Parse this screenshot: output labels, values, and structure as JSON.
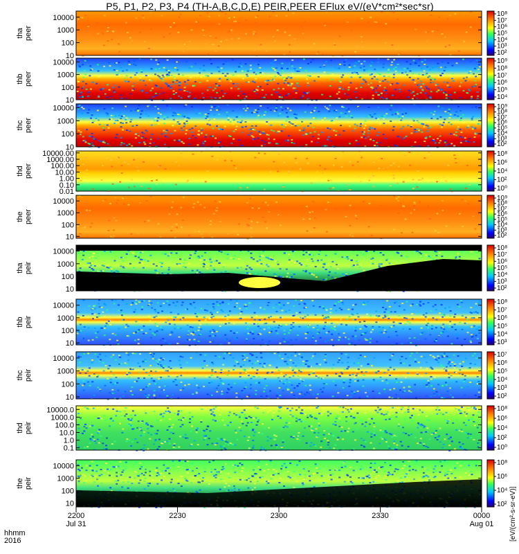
{
  "title": "P5, P1, P2, P3, P4 (TH-A,B,C,D,E) PEIR,PEER EFlux eV/(eV*cm²*sec*sr)",
  "colorbar_unit": "[eV/(cm²-s-sr-eV)]",
  "time_caption": {
    "line1": "hhmm",
    "line2": "2016"
  },
  "chart_data": {
    "type": "heatmap",
    "x_ticks": [
      {
        "label": "2200",
        "sub": "Jul 31"
      },
      {
        "label": "2230",
        "sub": ""
      },
      {
        "label": "2300",
        "sub": ""
      },
      {
        "label": "2330",
        "sub": ""
      },
      {
        "label": "0000",
        "sub": "Aug 01"
      }
    ],
    "panels": [
      {
        "id": "tha-peer",
        "probe": "tha",
        "product": "peer",
        "yticks": [
          "10000",
          "1000",
          "100",
          "10"
        ],
        "ylim": [
          10,
          30000
        ],
        "ylog": true,
        "colorbar_ticks": [
          "10⁸",
          "10⁷",
          "10⁶",
          "10⁵",
          "10⁴",
          "10³",
          "10²"
        ]
      },
      {
        "id": "thb-peer",
        "probe": "thb",
        "product": "peer",
        "yticks": [
          "10000",
          "1000",
          "100",
          "10"
        ],
        "ylim": [
          10,
          20000
        ],
        "ylog": true,
        "colorbar_ticks": [
          "10⁹",
          "10⁸",
          "10⁷",
          "10⁶",
          "10⁵",
          "10⁴"
        ]
      },
      {
        "id": "thc-peer",
        "probe": "thc",
        "product": "peer",
        "yticks": [
          "10000",
          "1000",
          "100",
          "10"
        ],
        "ylim": [
          10,
          20000
        ],
        "ylog": true,
        "colorbar_ticks": [
          "10⁹",
          "10⁸",
          "10⁷",
          "10⁶",
          "10⁵",
          "10⁴",
          "10³",
          "10²"
        ]
      },
      {
        "id": "thd-peer",
        "probe": "thd",
        "product": "peer",
        "yticks": [
          "10000.00",
          "1000.00",
          "100.00",
          "10.00",
          "1.00",
          "0.10",
          "0.01"
        ],
        "ylim": [
          0.01,
          20000
        ],
        "ylog": true,
        "colorbar_ticks": [
          "10⁸",
          "10⁶",
          "10⁴",
          "10²",
          "10⁰"
        ]
      },
      {
        "id": "the-peer",
        "probe": "the",
        "product": "peer",
        "yticks": [
          "10000",
          "1000",
          "100",
          "10"
        ],
        "ylim": [
          7,
          30000
        ],
        "ylog": true,
        "colorbar_ticks": [
          "10⁹",
          "10⁸",
          "10⁷",
          "10⁶",
          "10⁵",
          "10⁴",
          "10³",
          "10²"
        ]
      },
      {
        "id": "tha-peir",
        "probe": "tha",
        "product": "peir",
        "yticks": [
          "10000",
          "1000",
          "100",
          "10"
        ],
        "ylim": [
          7,
          30000
        ],
        "ylog": true,
        "colorbar_ticks": [
          "10⁸",
          "10⁷",
          "10⁶",
          "10⁵",
          "10⁴",
          "10³",
          "10²"
        ]
      },
      {
        "id": "thb-peir",
        "probe": "thb",
        "product": "peir",
        "yticks": [
          "10000",
          "1000",
          "100",
          "10"
        ],
        "ylim": [
          7,
          30000
        ],
        "ylog": true,
        "colorbar_ticks": [
          "10⁸",
          "10⁷",
          "10⁶",
          "10⁵",
          "10⁴",
          "10³"
        ]
      },
      {
        "id": "thc-peir",
        "probe": "thc",
        "product": "peir",
        "yticks": [
          "10000",
          "1000",
          "100",
          "10"
        ],
        "ylim": [
          7,
          30000
        ],
        "ylog": true,
        "colorbar_ticks": [
          "10⁷",
          "10⁶",
          "10⁵",
          "10⁴",
          "10³",
          "10²"
        ]
      },
      {
        "id": "thd-peir",
        "probe": "thd",
        "product": "peir",
        "yticks": [
          "10000.0",
          "1000.0",
          "100.0",
          "10.0",
          "1.0",
          "0.1"
        ],
        "ylim": [
          0.05,
          30000
        ],
        "ylog": true,
        "colorbar_ticks": [
          "10⁸",
          "10⁶",
          "10⁴",
          "10²",
          "10⁰"
        ]
      },
      {
        "id": "the-peir",
        "probe": "the",
        "product": "peir",
        "yticks": [
          "10000",
          "1000",
          "100",
          "10"
        ],
        "ylim": [
          5,
          30000
        ],
        "ylog": true,
        "colorbar_ticks": [
          "10⁸",
          "10⁶",
          "10⁴",
          "10²"
        ]
      }
    ]
  }
}
